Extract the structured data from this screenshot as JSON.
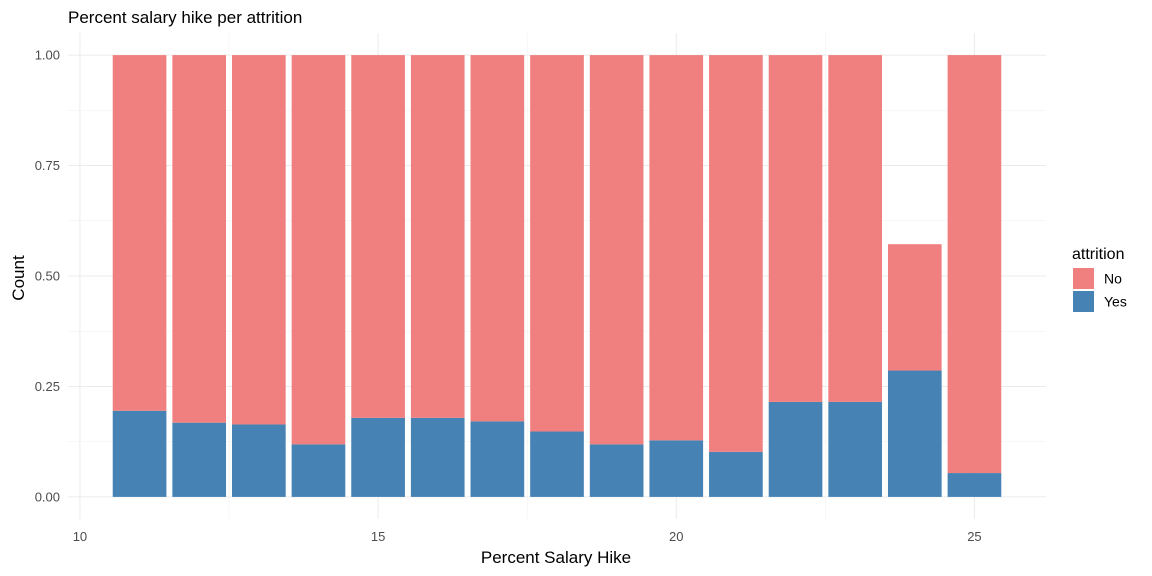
{
  "chart_data": {
    "type": "bar",
    "stacked": true,
    "title": "Percent salary hike per attrition",
    "xlabel": "Percent Salary Hike",
    "ylabel": "Count",
    "x": [
      11,
      12,
      13,
      14,
      15,
      16,
      17,
      18,
      19,
      20,
      21,
      22,
      23,
      24,
      25
    ],
    "series": [
      {
        "name": "No",
        "color": "#F08080",
        "values": [
          0.805,
          0.832,
          0.836,
          0.881,
          0.821,
          0.821,
          0.829,
          0.852,
          0.881,
          0.872,
          0.898,
          0.785,
          0.785,
          0.286,
          0.946
        ]
      },
      {
        "name": "Yes",
        "color": "#4682B4",
        "values": [
          0.195,
          0.168,
          0.164,
          0.119,
          0.179,
          0.179,
          0.171,
          0.148,
          0.119,
          0.128,
          0.102,
          0.215,
          0.215,
          0.286,
          0.054
        ]
      }
    ],
    "xlim": [
      9.8,
      26.2
    ],
    "ylim": [
      -0.05,
      1.05
    ],
    "xticks": [
      "10",
      "15",
      "20",
      "25"
    ],
    "yticks": [
      "0.00",
      "0.25",
      "0.50",
      "0.75",
      "1.00"
    ],
    "legend": {
      "title": "attrition",
      "position": "right"
    },
    "grid": true
  }
}
